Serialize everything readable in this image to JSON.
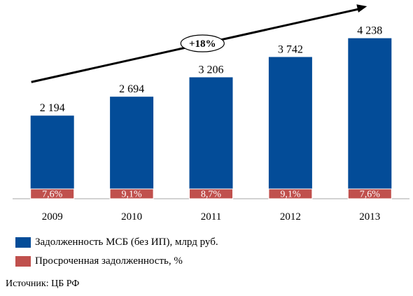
{
  "chart_data": {
    "type": "bar",
    "categories": [
      "2009",
      "2010",
      "2011",
      "2012",
      "2013"
    ],
    "series": [
      {
        "name": "Задолженность МСБ (без ИП), млрд руб.",
        "values": [
          2194,
          2694,
          3206,
          3742,
          4238
        ],
        "labels": [
          "2 194",
          "2 694",
          "3 206",
          "3 742",
          "4 238"
        ],
        "color": "#034C98"
      },
      {
        "name": "Просроченная задолженность, %",
        "values": [
          7.6,
          9.1,
          8.7,
          9.1,
          7.6
        ],
        "labels": [
          "7,6%",
          "9,1%",
          "8,7%",
          "9,1%",
          "7,6%"
        ],
        "color": "#C0504D"
      }
    ],
    "annotation": "+18%",
    "ylim": [
      0,
      4600
    ],
    "legend": "bottom-left",
    "grid": false
  },
  "source_text": "Источник: ЦБ РФ"
}
